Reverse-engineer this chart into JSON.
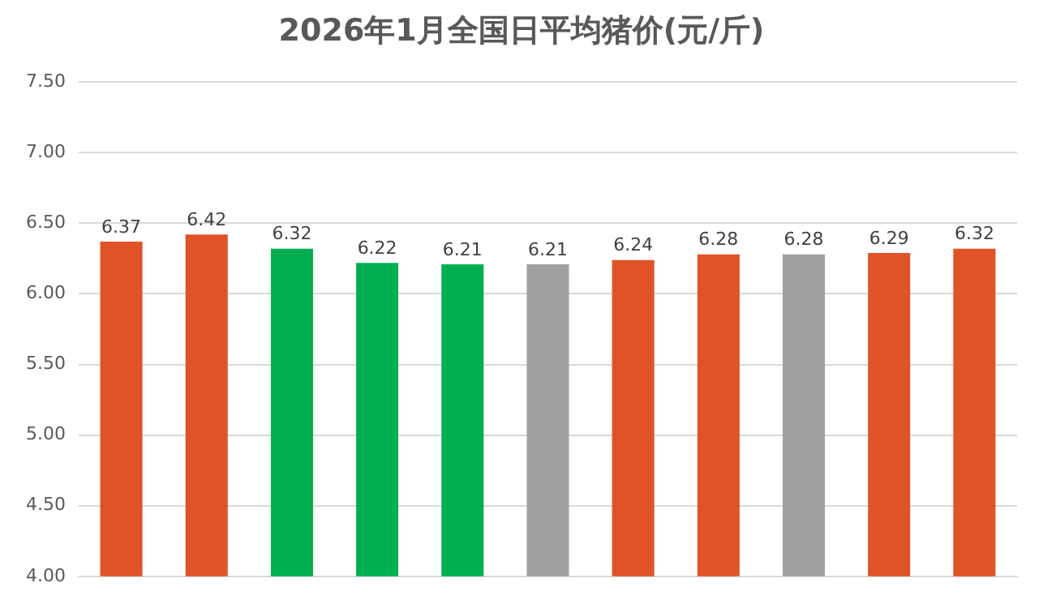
{
  "chart_data": {
    "type": "bar",
    "title": "2026年1月全国日平均猪价(元/斤)",
    "categories": [
      null,
      null,
      null,
      null,
      null,
      null,
      null,
      null,
      null,
      null,
      null
    ],
    "values": [
      6.37,
      6.42,
      6.32,
      6.22,
      6.21,
      6.21,
      6.24,
      6.28,
      6.28,
      6.29,
      6.32
    ],
    "colors": [
      "#e05326",
      "#e05326",
      "#00b050",
      "#00b050",
      "#00b050",
      "#a0a0a0",
      "#e05326",
      "#e05326",
      "#a0a0a0",
      "#e05326",
      "#e05326"
    ],
    "ylim": [
      4,
      7.5
    ],
    "yticks": [
      {
        "value": 4,
        "label": "4.00"
      },
      {
        "value": 4.5,
        "label": "4.50"
      },
      {
        "value": 5,
        "label": "5.00"
      },
      {
        "value": 5.5,
        "label": "5.50"
      },
      {
        "value": 6,
        "label": "6.00"
      },
      {
        "value": 6.5,
        "label": "6.50"
      },
      {
        "value": 7,
        "label": "7.00"
      },
      {
        "value": 7.5,
        "label": "7.50"
      }
    ],
    "grid": "y",
    "tick_labels": "y",
    "data_labels": true,
    "legend": false
  }
}
